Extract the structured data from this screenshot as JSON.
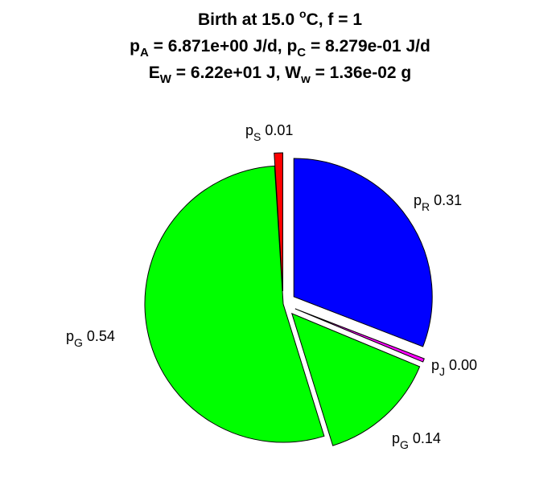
{
  "chart_data": {
    "type": "pie",
    "title": {
      "line1": {
        "pre": "Birth at 15.0 ",
        "sup": "o",
        "post": "C, f = 1"
      },
      "line2": {
        "a": "p",
        "a_sub": "A",
        "b": " = 6.871e+00 J/d, p",
        "b_sub": "C",
        "c": " = 8.279e-01 J/d"
      },
      "line3": {
        "a": "E",
        "a_sub": "W",
        "b": " = 6.22e+01 J, W",
        "b_sub": "w",
        "c": " = 1.36e-02 g"
      }
    },
    "slices": [
      {
        "label": "p",
        "sub": "R",
        "value_text": "0.31",
        "value": 0.31,
        "color": "#0000ff",
        "exploded": true
      },
      {
        "label": "p",
        "sub": "J",
        "value_text": "0.00",
        "value": 0.004,
        "color": "#ff00ff",
        "exploded": true
      },
      {
        "label": "p",
        "sub": "G",
        "value_text": "0.14",
        "value": 0.14,
        "color": "#00ff00",
        "exploded": true
      },
      {
        "label": "p",
        "sub": "G",
        "value_text": "0.54",
        "value": 0.54,
        "color": "#00ff00",
        "exploded": false
      },
      {
        "label": "p",
        "sub": "S",
        "value_text": "0.01",
        "value": 0.01,
        "color": "#ff0000",
        "exploded": true
      }
    ]
  }
}
